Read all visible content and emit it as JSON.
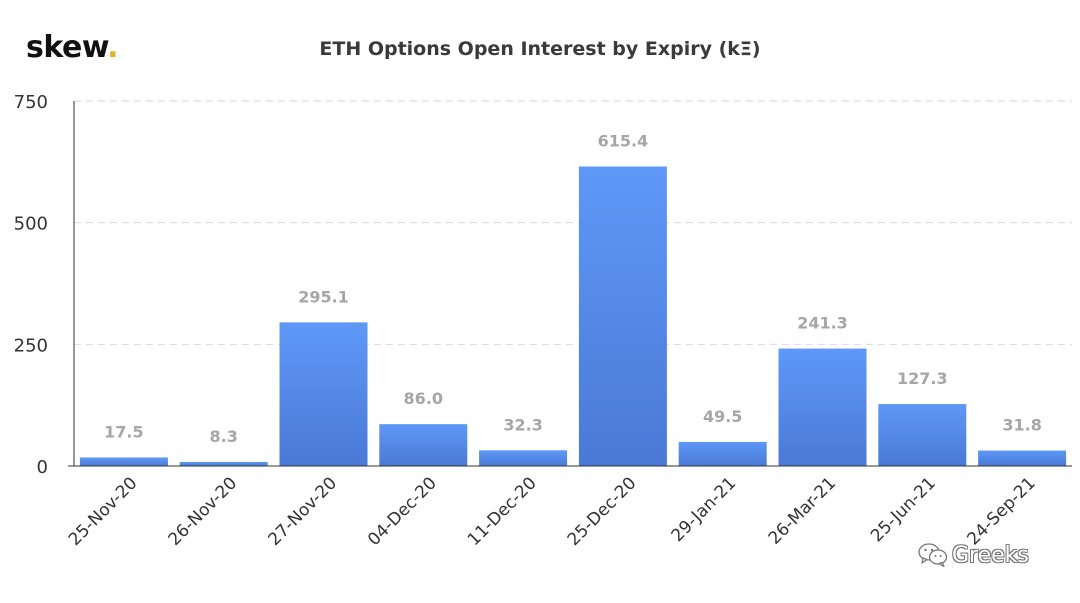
{
  "brand": {
    "name": "skew",
    "dot": "."
  },
  "watermark": {
    "text": "Greeks",
    "icon": "wechat-icon"
  },
  "colors": {
    "bar_top": "#5f98f7",
    "bar_bottom": "#4a79d6",
    "label": "#a6a6a6",
    "grid": "#d9d9d9",
    "axis": "#333333"
  },
  "chart_data": {
    "type": "bar",
    "title": "ETH Options Open Interest by Expiry (kΞ)",
    "xlabel": "",
    "ylabel": "",
    "categories": [
      "25-Nov-20",
      "26-Nov-20",
      "27-Nov-20",
      "04-Dec-20",
      "11-Dec-20",
      "25-Dec-20",
      "29-Jan-21",
      "26-Mar-21",
      "25-Jun-21",
      "24-Sep-21"
    ],
    "values": [
      17.5,
      8.3,
      295.1,
      86.0,
      32.3,
      615.4,
      49.5,
      241.3,
      127.3,
      31.8
    ],
    "value_labels": [
      "17.5",
      "8.3",
      "295.1",
      "86.0",
      "32.3",
      "615.4",
      "49.5",
      "241.3",
      "127.3",
      "31.8"
    ],
    "ylim": [
      0,
      750
    ],
    "yticks": [
      0,
      250,
      500,
      750
    ],
    "ytick_labels": [
      "0",
      "250",
      "500",
      "750"
    ],
    "grid": true,
    "legend": "none"
  }
}
